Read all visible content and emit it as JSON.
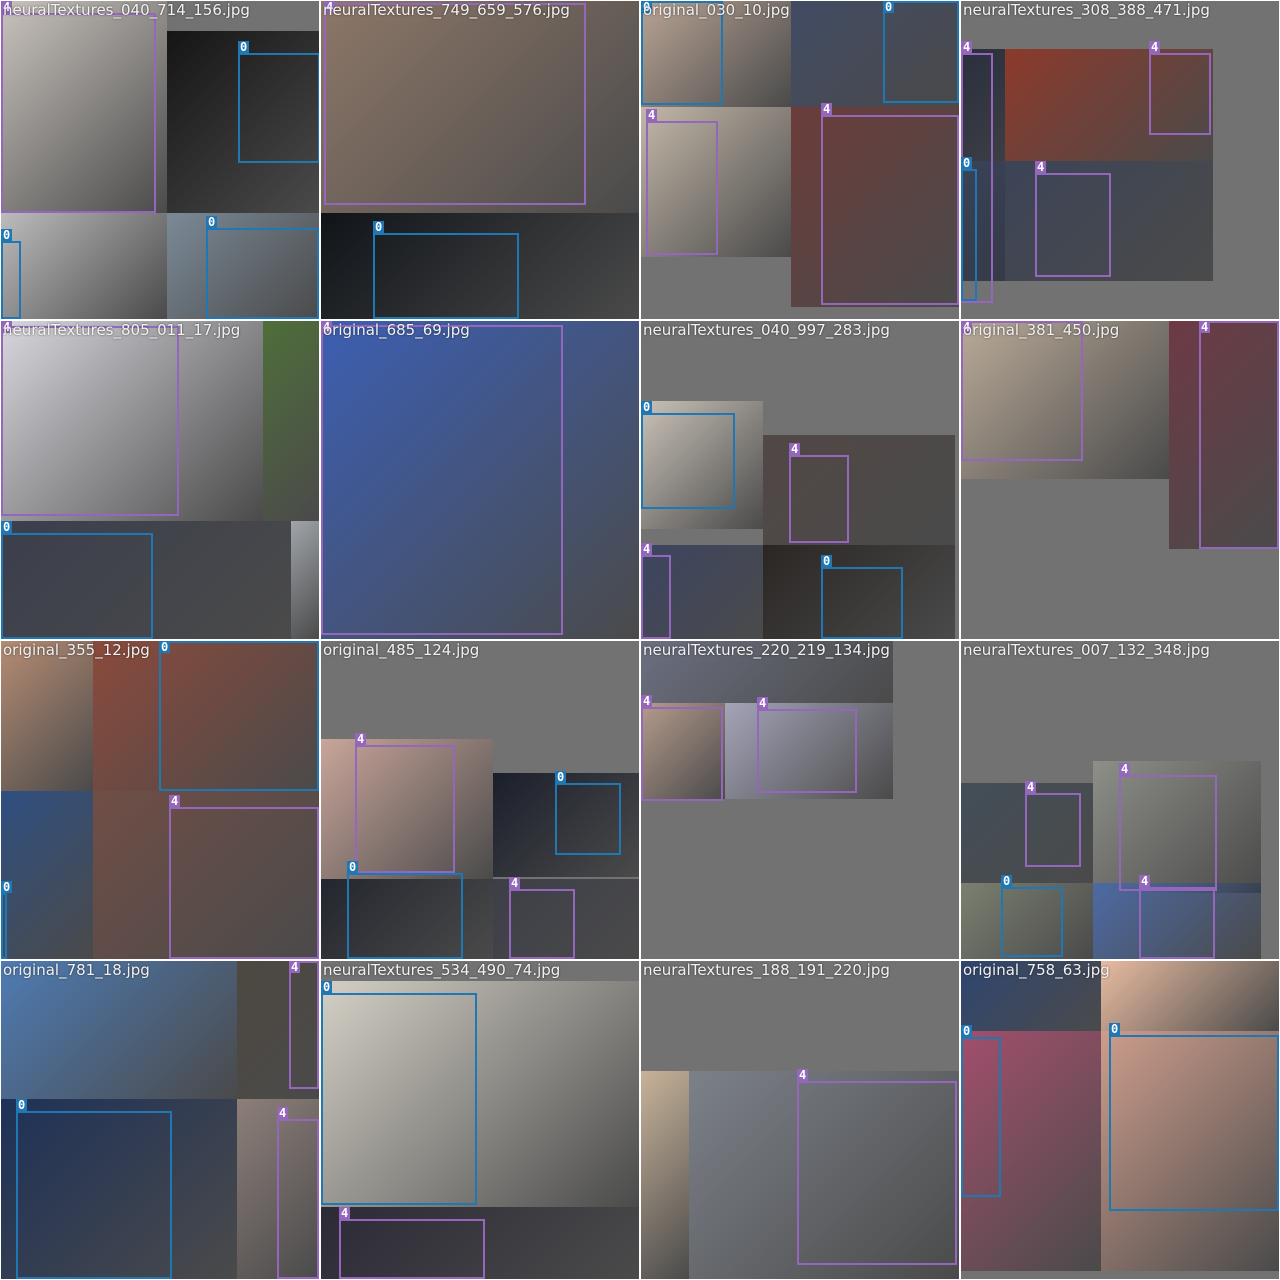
{
  "colors": {
    "class_0": "#1f77b4",
    "class_4": "#9467bd",
    "cell_bg": "#727272"
  },
  "tiles": [
    {
      "filename": "neuralTextures_040_714_156.jpg",
      "images": [
        [
          0,
          0,
          166,
          212,
          "#c9c3bd"
        ],
        [
          166,
          30,
          152,
          182,
          "#151515"
        ],
        [
          0,
          212,
          166,
          106,
          "#bcbcbc"
        ],
        [
          166,
          212,
          152,
          106,
          "#7b8a97"
        ]
      ],
      "boxes": [
        [
          0,
          12,
          155,
          200,
          "4"
        ],
        [
          237,
          52,
          82,
          110,
          "0"
        ],
        [
          205,
          227,
          113,
          91,
          "0"
        ],
        [
          0,
          240,
          20,
          78,
          "0"
        ]
      ]
    },
    {
      "filename": "neuralTextures_749_659_576.jpg",
      "images": [
        [
          0,
          0,
          318,
          212,
          "#8d7768"
        ],
        [
          0,
          212,
          318,
          106,
          "#101419"
        ]
      ],
      "boxes": [
        [
          3,
          2,
          262,
          202,
          "4"
        ],
        [
          52,
          232,
          146,
          86,
          "0"
        ]
      ]
    },
    {
      "filename": "original_030_10.jpg",
      "images": [
        [
          0,
          0,
          150,
          106,
          "#b8a394"
        ],
        [
          150,
          0,
          168,
          106,
          "#414b63"
        ],
        [
          0,
          106,
          150,
          150,
          "#c3b7a8"
        ],
        [
          150,
          106,
          168,
          200,
          "#6b3c3a"
        ]
      ],
      "boxes": [
        [
          0,
          0,
          82,
          104,
          "0"
        ],
        [
          242,
          0,
          76,
          102,
          "0"
        ],
        [
          5,
          120,
          72,
          134,
          "4"
        ],
        [
          180,
          114,
          138,
          190,
          "4"
        ]
      ]
    },
    {
      "filename": "neuralTextures_308_388_471.jpg",
      "images": [
        [
          0,
          48,
          44,
          232,
          "#2a2f3d"
        ],
        [
          44,
          48,
          208,
          112,
          "#8c3a2b"
        ],
        [
          0,
          160,
          252,
          120,
          "#3a4358"
        ]
      ],
      "boxes": [
        [
          0,
          52,
          32,
          250,
          "4"
        ],
        [
          188,
          52,
          62,
          82,
          "4"
        ],
        [
          0,
          168,
          16,
          132,
          "0"
        ],
        [
          74,
          172,
          76,
          104,
          "4"
        ]
      ]
    },
    {
      "filename": "neuralTextures_805_011_17.jpg",
      "images": [
        [
          0,
          0,
          262,
          200,
          "#d7d7dd"
        ],
        [
          262,
          0,
          56,
          200,
          "#4f6e3a"
        ],
        [
          0,
          200,
          290,
          118,
          "#3b3f4c"
        ],
        [
          290,
          200,
          28,
          118,
          "#a0a5aa"
        ]
      ],
      "boxes": [
        [
          0,
          5,
          178,
          190,
          "4"
        ],
        [
          0,
          212,
          152,
          106,
          "0"
        ]
      ]
    },
    {
      "filename": "original_685_69.jpg",
      "images": [
        [
          0,
          0,
          318,
          318,
          "#3c5fb3"
        ]
      ],
      "boxes": [
        [
          0,
          4,
          242,
          310,
          "4"
        ]
      ]
    },
    {
      "filename": "neuralTextures_040_997_283.jpg",
      "images": [
        [
          0,
          80,
          122,
          128,
          "#c9c2b8"
        ],
        [
          122,
          114,
          192,
          110,
          "#514845"
        ],
        [
          0,
          224,
          122,
          94,
          "#3c4561"
        ],
        [
          122,
          224,
          192,
          94,
          "#2a2624"
        ]
      ],
      "boxes": [
        [
          0,
          92,
          94,
          96,
          "0"
        ],
        [
          148,
          134,
          60,
          88,
          "4"
        ],
        [
          0,
          234,
          30,
          84,
          "4"
        ],
        [
          180,
          246,
          82,
          72,
          "0"
        ]
      ]
    },
    {
      "filename": "original_381_450.jpg",
      "images": [
        [
          0,
          0,
          208,
          158,
          "#b9aa98"
        ],
        [
          208,
          0,
          110,
          228,
          "#6d3a45"
        ]
      ],
      "boxes": [
        [
          0,
          0,
          122,
          140,
          "4"
        ],
        [
          238,
          0,
          80,
          228,
          "4"
        ]
      ]
    },
    {
      "filename": "original_355_12.jpg",
      "images": [
        [
          0,
          0,
          92,
          150,
          "#b58c73"
        ],
        [
          92,
          0,
          226,
          150,
          "#8b4a3c"
        ],
        [
          0,
          150,
          92,
          168,
          "#2f4f80"
        ],
        [
          92,
          150,
          226,
          168,
          "#704e46"
        ]
      ],
      "boxes": [
        [
          158,
          0,
          160,
          150,
          "0"
        ],
        [
          168,
          166,
          150,
          152,
          "4"
        ],
        [
          0,
          252,
          6,
          66,
          "0"
        ]
      ]
    },
    {
      "filename": "original_485_124.jpg",
      "images": [
        [
          0,
          98,
          172,
          140,
          "#c9a59a"
        ],
        [
          172,
          132,
          146,
          104,
          "#1b1f2b"
        ],
        [
          0,
          238,
          172,
          80,
          "#23262e"
        ],
        [
          172,
          238,
          146,
          80,
          "#3d3f48"
        ]
      ],
      "boxes": [
        [
          34,
          104,
          100,
          128,
          "4"
        ],
        [
          234,
          142,
          66,
          72,
          "0"
        ],
        [
          26,
          232,
          116,
          86,
          "0"
        ],
        [
          188,
          248,
          66,
          70,
          "4"
        ]
      ]
    },
    {
      "filename": "neuralTextures_220_219_134.jpg",
      "images": [
        [
          0,
          0,
          252,
          62,
          "#6b6f80"
        ],
        [
          0,
          62,
          84,
          96,
          "#b59b8c"
        ],
        [
          84,
          62,
          168,
          96,
          "#a4a4b8"
        ]
      ],
      "boxes": [
        [
          0,
          66,
          82,
          94,
          "4"
        ],
        [
          116,
          68,
          100,
          84,
          "4"
        ]
      ]
    },
    {
      "filename": "neuralTextures_007_132_348.jpg",
      "images": [
        [
          0,
          142,
          132,
          100,
          "#434e58"
        ],
        [
          132,
          120,
          168,
          132,
          "#8d8f88"
        ],
        [
          0,
          242,
          132,
          76,
          "#7b8070"
        ],
        [
          132,
          242,
          168,
          76,
          "#4c6aa4"
        ]
      ],
      "boxes": [
        [
          64,
          152,
          56,
          74,
          "4"
        ],
        [
          158,
          134,
          98,
          116,
          "4"
        ],
        [
          40,
          246,
          62,
          70,
          "0"
        ],
        [
          178,
          246,
          76,
          72,
          "4"
        ]
      ]
    },
    {
      "filename": "original_781_18.jpg",
      "images": [
        [
          0,
          0,
          236,
          138,
          "#4e7bb3"
        ],
        [
          236,
          0,
          82,
          138,
          "#4d4840"
        ],
        [
          0,
          138,
          236,
          180,
          "#1e3158"
        ],
        [
          236,
          138,
          82,
          180,
          "#8d7f7a"
        ]
      ],
      "boxes": [
        [
          288,
          0,
          30,
          128,
          "4"
        ],
        [
          15,
          150,
          156,
          168,
          "0"
        ],
        [
          276,
          158,
          42,
          160,
          "4"
        ]
      ]
    },
    {
      "filename": "neuralTextures_534_490_74.jpg",
      "images": [
        [
          0,
          20,
          318,
          226,
          "#d4d0c6"
        ],
        [
          0,
          246,
          318,
          72,
          "#2c2a36"
        ]
      ],
      "boxes": [
        [
          0,
          32,
          156,
          212,
          "0"
        ],
        [
          18,
          258,
          146,
          60,
          "4"
        ]
      ]
    },
    {
      "filename": "neuralTextures_188_191_220.jpg",
      "images": [
        [
          0,
          110,
          48,
          208,
          "#c8b39a"
        ],
        [
          48,
          110,
          270,
          208,
          "#7c8189"
        ]
      ],
      "boxes": [
        [
          156,
          120,
          160,
          184,
          "4"
        ]
      ]
    },
    {
      "filename": "original_758_63.jpg",
      "images": [
        [
          0,
          0,
          140,
          70,
          "#2f4670"
        ],
        [
          140,
          0,
          178,
          70,
          "#e8bba0"
        ],
        [
          0,
          70,
          140,
          240,
          "#a24f6c"
        ],
        [
          140,
          70,
          178,
          240,
          "#cd9d8c"
        ]
      ],
      "boxes": [
        [
          0,
          76,
          40,
          160,
          "0"
        ],
        [
          148,
          74,
          170,
          176,
          "0"
        ]
      ]
    }
  ]
}
